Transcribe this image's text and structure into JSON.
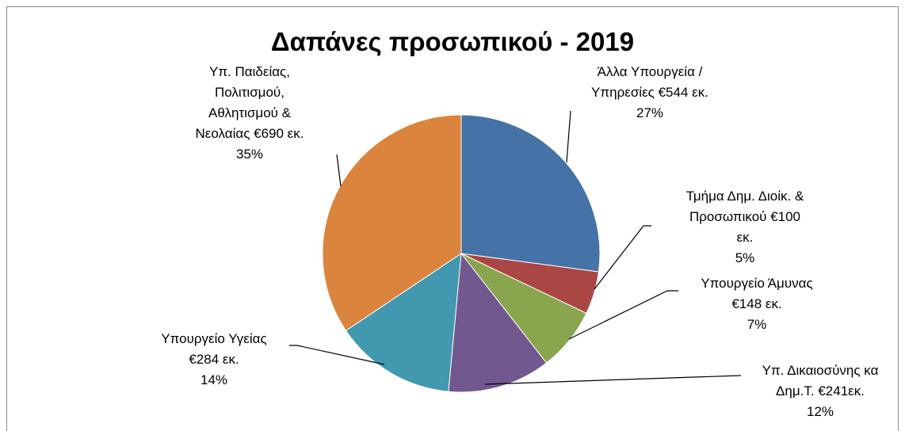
{
  "chart_data": {
    "type": "pie",
    "title": "Δαπάνες προσωπικού - 2019",
    "categories": [
      "Άλλα Υπουργεία / Υπηρεσίες",
      "Τμήμα Δημ. Διοίκ. & Προσωπικού",
      "Υπουργείο Άμυνας",
      "Υπ. Δικαιοσύνης κα Δημ.Τ.",
      "Υπουργείο Υγείας",
      "Υπ. Παιδείας, Πολιτισμού, Αθλητισμού & Νεολαίας"
    ],
    "values": [
      544,
      100,
      148,
      241,
      284,
      690
    ],
    "value_labels": [
      "€544 εκ.",
      "€100 εκ.",
      "€148 εκ.",
      "€241εκ.",
      "€284 εκ.",
      "€690 εκ."
    ],
    "percent_labels": [
      "27%",
      "5%",
      "7%",
      "12%",
      "14%",
      "35%"
    ],
    "colors": [
      "#4572a7",
      "#aa4643",
      "#89a54e",
      "#71588f",
      "#4198af",
      "#db843d"
    ]
  }
}
